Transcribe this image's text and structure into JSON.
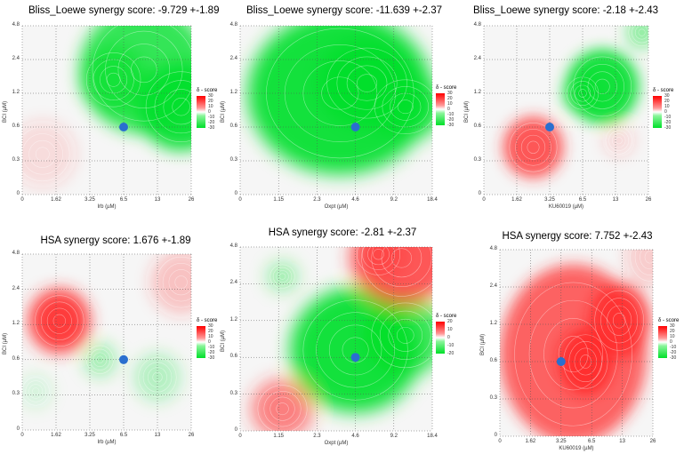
{
  "chart_data": [
    {
      "type": "heatmap",
      "title": "Bliss_Loewe synergy score: -9.729 +-1.89",
      "xlabel": "Irb (µM)",
      "ylabel": "BCI (µM)",
      "x_ticks": [
        "0",
        "1.62",
        "3.25",
        "6.5",
        "13",
        "26"
      ],
      "y_ticks": [
        "0",
        "0.3",
        "0.6",
        "1.2",
        "2.4",
        "4.8"
      ],
      "legend_title": "δ - score",
      "legend_ticks": [
        "30",
        "20",
        "10",
        "0",
        "-10",
        "-20",
        "-30"
      ],
      "marker": {
        "x": "6.5",
        "y": "0.6"
      },
      "blobs": [
        {
          "x": 3.6,
          "y": 3.7,
          "r": 1.9,
          "score": -24
        },
        {
          "x": 4.7,
          "y": 2.6,
          "r": 1.3,
          "score": -30
        },
        {
          "x": 2.7,
          "y": 3.4,
          "r": 1.0,
          "score": -18
        },
        {
          "x": 0.6,
          "y": 1.2,
          "r": 1.0,
          "score": 4
        }
      ]
    },
    {
      "type": "heatmap",
      "title": "Bliss_Loewe synergy score: -11.639 +-2.37",
      "xlabel": "Oxpt (µM)",
      "ylabel": "BCI (µM)",
      "x_ticks": [
        "0",
        "1.15",
        "2.3",
        "4.6",
        "9.2",
        "18.4"
      ],
      "y_ticks": [
        "0",
        "0.3",
        "0.6",
        "1.2",
        "2.4",
        "4.8"
      ],
      "legend_title": "δ - score",
      "legend_ticks": [
        "30",
        "20",
        "10",
        "0",
        "-10",
        "-20",
        "-30"
      ],
      "marker": {
        "x": "4.6",
        "y": "0.6"
      },
      "blobs": [
        {
          "x": 2.6,
          "y": 3.0,
          "r": 2.4,
          "score": -30
        },
        {
          "x": 3.3,
          "y": 3.3,
          "r": 1.3,
          "score": -30
        },
        {
          "x": 4.3,
          "y": 2.6,
          "r": 1.0,
          "score": -24
        }
      ]
    },
    {
      "type": "heatmap",
      "title": "Bliss_Loewe synergy score: -2.18 +-2.43",
      "xlabel": "KU60019 (µM)",
      "ylabel": "BCI (µM)",
      "x_ticks": [
        "0",
        "1.62",
        "3.25",
        "6.5",
        "13",
        "26"
      ],
      "y_ticks": [
        "0",
        "0.3",
        "0.6",
        "1.2",
        "2.4",
        "4.8"
      ],
      "legend_title": "δ - score",
      "legend_ticks": [
        "30",
        "20",
        "10",
        "0",
        "-10",
        "-20",
        "-30"
      ],
      "marker": {
        "x": "3.25",
        "y": "0.6"
      },
      "blobs": [
        {
          "x": 3.6,
          "y": 3.2,
          "r": 1.1,
          "score": -28
        },
        {
          "x": 3.0,
          "y": 3.0,
          "r": 0.6,
          "score": -20
        },
        {
          "x": 4.8,
          "y": 4.8,
          "r": 0.5,
          "score": -12
        },
        {
          "x": 1.5,
          "y": 1.4,
          "r": 0.9,
          "score": 24
        },
        {
          "x": 4.1,
          "y": 1.6,
          "r": 0.5,
          "score": 4
        }
      ]
    },
    {
      "type": "heatmap",
      "title": "HSA synergy score: 1.676 +-1.89",
      "xlabel": "Irb (µM)",
      "ylabel": "BCI (µM)",
      "x_ticks": [
        "0",
        "1.62",
        "3.25",
        "6.5",
        "13",
        "26"
      ],
      "y_ticks": [
        "0",
        "0.3",
        "0.6",
        "1.2",
        "2.4",
        "4.8"
      ],
      "legend_title": "δ - score",
      "legend_ticks": [
        "30",
        "20",
        "10",
        "0",
        "-10",
        "-20",
        "-30"
      ],
      "marker": {
        "x": "6.5",
        "y": "0.6"
      },
      "blobs": [
        {
          "x": 1.1,
          "y": 3.1,
          "r": 0.9,
          "score": 28
        },
        {
          "x": 4.7,
          "y": 4.2,
          "r": 0.9,
          "score": 8
        },
        {
          "x": 2.3,
          "y": 2.0,
          "r": 0.5,
          "score": -10
        },
        {
          "x": 4.0,
          "y": 1.5,
          "r": 0.7,
          "score": -8
        },
        {
          "x": 0.4,
          "y": 1.1,
          "r": 0.5,
          "score": -4
        }
      ]
    },
    {
      "type": "heatmap",
      "title": "HSA synergy score: -2.81 +-2.37",
      "xlabel": "Oxpt (µM)",
      "ylabel": "BCI (µM)",
      "x_ticks": [
        "0",
        "1.15",
        "2.3",
        "4.6",
        "9.2",
        "18.4"
      ],
      "y_ticks": [
        "0",
        "0.3",
        "0.6",
        "1.2",
        "2.4",
        "4.8"
      ],
      "legend_title": "δ - score",
      "legend_ticks": [
        "20",
        "10",
        "0",
        "-10",
        "-20"
      ],
      "marker": {
        "x": "4.6",
        "y": "0.6"
      },
      "blobs": [
        {
          "x": 3.0,
          "y": 2.2,
          "r": 1.7,
          "score": -28
        },
        {
          "x": 4.3,
          "y": 2.6,
          "r": 1.1,
          "score": -22
        },
        {
          "x": 1.1,
          "y": 4.2,
          "r": 0.4,
          "score": -12
        },
        {
          "x": 1.1,
          "y": 0.6,
          "r": 0.8,
          "score": 18
        },
        {
          "x": 4.2,
          "y": 4.7,
          "r": 1.3,
          "score": 24
        },
        {
          "x": 3.6,
          "y": 4.8,
          "r": 0.7,
          "score": 10
        }
      ]
    },
    {
      "type": "heatmap",
      "title": "HSA synergy score: 7.752 +-2.43",
      "xlabel": "KU60019 (µM)",
      "ylabel": "BCI (µM)",
      "x_ticks": [
        "0",
        "1.62",
        "3.25",
        "6.5",
        "13",
        "26"
      ],
      "y_ticks": [
        "0",
        "0.3",
        "0.6",
        "1.2",
        "2.4",
        "4.8"
      ],
      "legend_title": "δ - score",
      "legend_ticks": [
        "30",
        "20",
        "10",
        "0",
        "-10",
        "-20",
        "-30"
      ],
      "marker": {
        "x": "3.25",
        "y": "0.6"
      },
      "blobs": [
        {
          "x": 2.4,
          "y": 2.2,
          "r": 2.4,
          "score": 22
        },
        {
          "x": 3.9,
          "y": 3.1,
          "r": 1.0,
          "score": 26
        },
        {
          "x": 2.8,
          "y": 2.0,
          "r": 0.9,
          "score": 28
        },
        {
          "x": 4.9,
          "y": 4.8,
          "r": 0.8,
          "score": 6
        }
      ]
    }
  ]
}
